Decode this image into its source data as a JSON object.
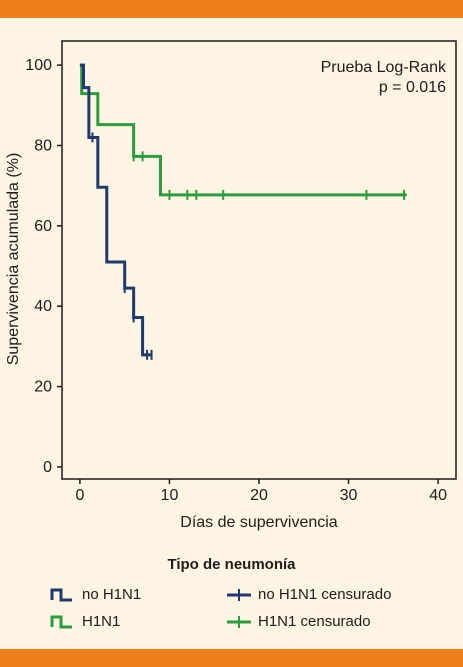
{
  "chart_data": {
    "type": "line",
    "subtype": "kaplan-meier",
    "annotation": [
      "Prueba Log-Rank",
      "p = 0.016"
    ],
    "xlabel": "Días de supervivencia",
    "ylabel": "Supervivencia acumulada (%)",
    "xlim": [
      -2,
      42
    ],
    "ylim": [
      -3,
      106
    ],
    "xticks": [
      0,
      10,
      20,
      30,
      40
    ],
    "yticks": [
      0,
      20,
      40,
      60,
      80,
      100
    ],
    "grid": false,
    "legend": {
      "title": "Tipo de neumonía",
      "placement": "bottom",
      "entries": [
        "no H1N1",
        "H1N1",
        "no H1N1 censurado",
        "H1N1 censurado"
      ]
    },
    "series": [
      {
        "name": "no H1N1",
        "color": "#1e3a6e",
        "steps": [
          [
            0,
            100
          ],
          [
            0.4,
            94.4
          ],
          [
            1,
            82
          ],
          [
            2,
            69.6
          ],
          [
            3,
            51
          ],
          [
            5,
            44.5
          ],
          [
            6,
            37.2
          ],
          [
            7,
            27.9
          ]
        ],
        "end_x": 8,
        "censored": [
          [
            1.4,
            82
          ],
          [
            5,
            44.5
          ],
          [
            6,
            37.2
          ],
          [
            7.5,
            27.9
          ],
          [
            8,
            27.9
          ]
        ]
      },
      {
        "name": "H1N1",
        "color": "#2a9d3e",
        "steps": [
          [
            0,
            100
          ],
          [
            0.2,
            92.9
          ],
          [
            2,
            85.2
          ],
          [
            6,
            77.3
          ],
          [
            9,
            67.7
          ]
        ],
        "end_x": 36.5,
        "censored": [
          [
            6,
            77.3
          ],
          [
            7,
            77.3
          ],
          [
            10,
            67.7
          ],
          [
            12,
            67.7
          ],
          [
            13,
            67.7
          ],
          [
            16,
            67.7
          ],
          [
            32,
            67.7
          ],
          [
            36.2,
            67.7
          ]
        ]
      }
    ]
  },
  "colors": {
    "band": "#ef7d1a",
    "background": "#fdf4e3",
    "no_h1n1": "#1e3a6e",
    "h1n1": "#2a9d3e"
  }
}
